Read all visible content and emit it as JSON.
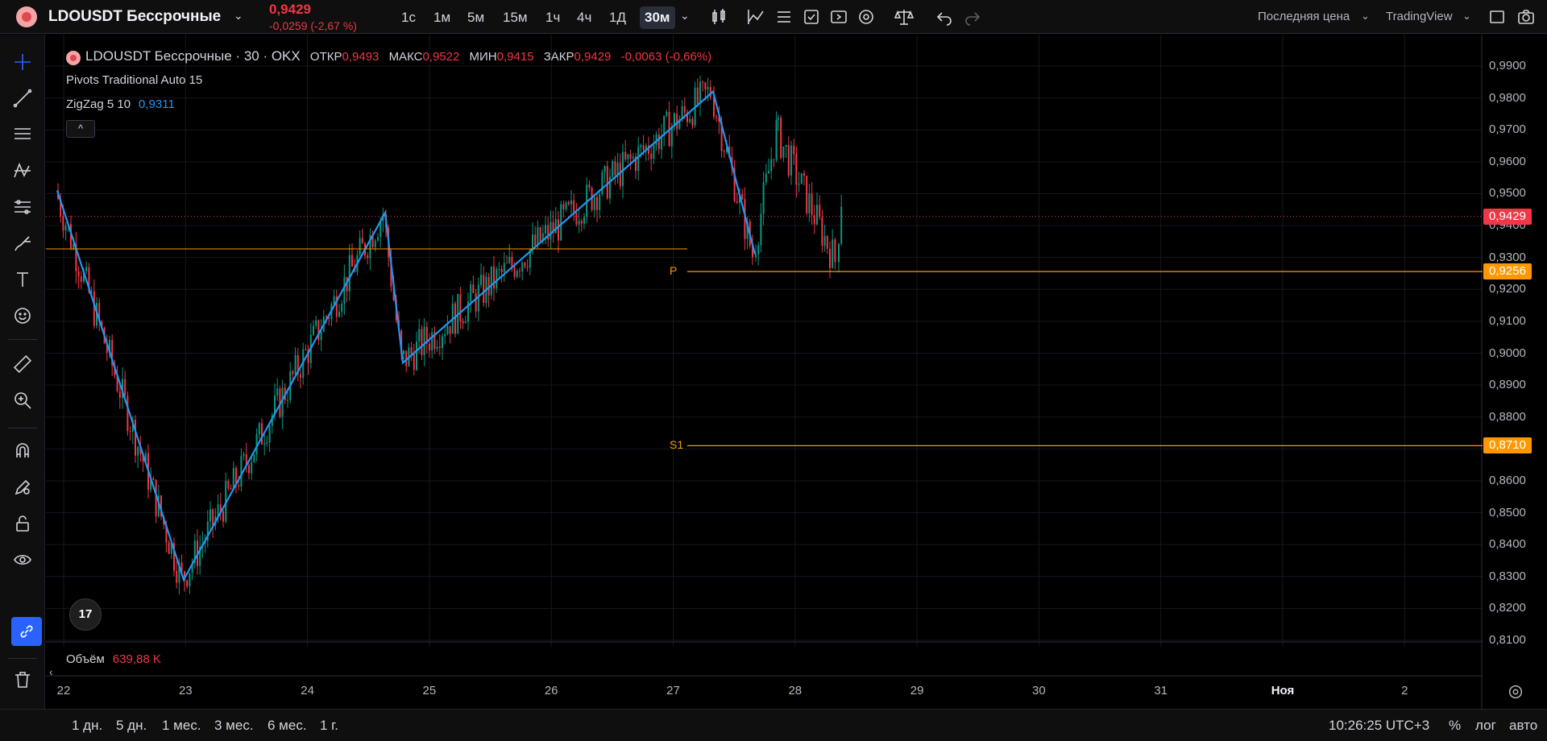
{
  "header": {
    "symbol_title": "LDOUSDT Бессрочные",
    "price": "0,9429",
    "change": "-0,0259 (-2,67 %)",
    "intervals": [
      "1с",
      "1м",
      "5м",
      "15м",
      "1ч",
      "4ч",
      "1Д",
      "30м"
    ],
    "active_interval": "30м",
    "price_type": "Последняя цена",
    "provider": "TradingView"
  },
  "legend": {
    "symbol": "LDOUSDT Бессрочные · 30 · OKX",
    "open_label": "ОТКР",
    "open": "0,9493",
    "high_label": "МАКС",
    "high": "0,9522",
    "low_label": "МИН",
    "low": "0,9415",
    "close_label": "ЗАКР",
    "close": "0,9429",
    "change": "-0,0063 (-0,66%)",
    "pivots": "Pivots Traditional Auto 15",
    "zigzag": "ZigZag 5 10",
    "zigzag_value": "0,9311",
    "collapse": "^"
  },
  "price_axis": {
    "ticks": [
      "0,9900",
      "0,9800",
      "0,9700",
      "0,9600",
      "0,9500",
      "0,9400",
      "0,9300",
      "0,9200",
      "0,9100",
      "0,9000",
      "0,8900",
      "0,8800",
      "0,8700",
      "0,8600",
      "0,8500",
      "0,8400",
      "0,8300",
      "0,8200",
      "0,8100"
    ],
    "last_price": "0,9429",
    "pivot_p": "0,9256",
    "pivot_s1": "0,8710"
  },
  "pivots": {
    "p_label": "P",
    "s1_label": "S1"
  },
  "volume": {
    "label": "Объём",
    "value": "639,88 K"
  },
  "time_axis": [
    "22",
    "23",
    "24",
    "25",
    "26",
    "27",
    "28",
    "29",
    "30",
    "31",
    "Ноя",
    "2"
  ],
  "bottom": {
    "ranges": [
      "1 дн.",
      "5 дн.",
      "1 мес.",
      "3 мес.",
      "6 мес.",
      "1 г."
    ],
    "clock": "10:26:25 UTC+3",
    "percent": "%",
    "log": "лог",
    "auto": "авто"
  },
  "colors": {
    "up": "#089981",
    "down": "#f23645",
    "zigzag": "#2196f3",
    "pivot": "#ff9800",
    "accent": "#2962ff"
  },
  "tv_logo": "17"
}
